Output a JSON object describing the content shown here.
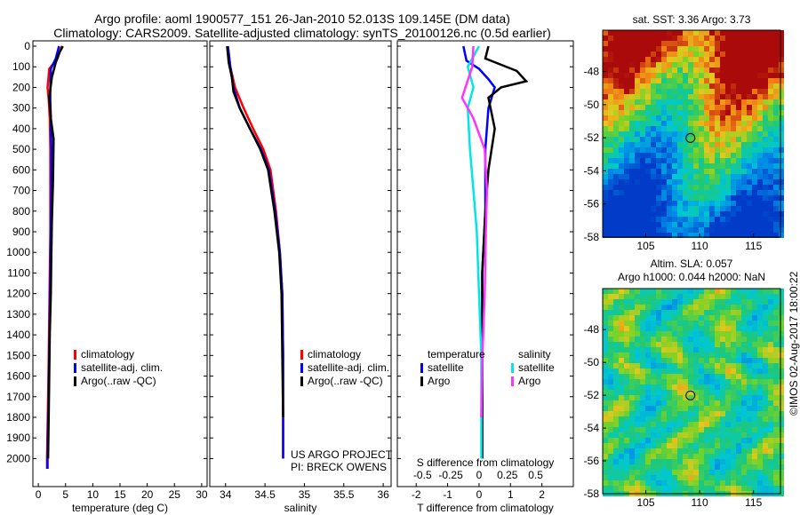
{
  "title_line1": "Argo profile: aoml 1900577_151 26-Jan-2010 52.013S 109.145E (DM data)",
  "title_line2": "Climatology: CARS2009. Satellite-adjusted climatology: synTS_20100126.nc (0.5d earlier)",
  "imos_stamp": "©IMOS 02-Aug-2017 18:00:22",
  "colors": {
    "climatology": "#ff0000",
    "satellite": "#0000ff",
    "argo": "#000000",
    "salinity_satellite": "#00e5e5",
    "salinity_argo": "#ff33ff",
    "background": "#ffffff"
  },
  "chart_data": [
    {
      "type": "line",
      "id": "temperature",
      "xlabel": "temperature (deg C)",
      "ylabel": "",
      "xlim": [
        -1,
        31
      ],
      "ylim": [
        2080,
        0
      ],
      "xticks": [
        0,
        5,
        10,
        15,
        20,
        25,
        30
      ],
      "yticks": [
        0,
        100,
        200,
        300,
        400,
        500,
        600,
        700,
        800,
        900,
        1000,
        1100,
        1200,
        1300,
        1400,
        1500,
        1600,
        1700,
        1800,
        1900,
        2000
      ],
      "legend": [
        "climatology",
        "satellite-adj. clim.",
        "Argo(..raw -QC)"
      ],
      "legend_position": "middle",
      "series": [
        {
          "name": "climatology",
          "color": "#ff0000",
          "x": [
            4.3,
            3.5,
            2.0,
            1.7,
            1.9,
            2.1,
            2.2,
            2.2,
            2.2,
            2.1,
            2.0,
            1.9,
            1.8,
            1.7,
            1.6,
            1.6
          ],
          "depth": [
            0,
            60,
            110,
            200,
            260,
            350,
            500,
            700,
            900,
            1100,
            1300,
            1500,
            1700,
            1850,
            2000,
            2050
          ]
        },
        {
          "name": "satellite-adj. clim.",
          "color": "#0000ff",
          "x": [
            3.8,
            3.2,
            2.3,
            2.2,
            2.2,
            2.3,
            2.4,
            2.4,
            2.3,
            2.2,
            2.1,
            2.0,
            1.9,
            1.8,
            1.7,
            1.7
          ],
          "depth": [
            0,
            60,
            110,
            200,
            260,
            350,
            500,
            700,
            900,
            1100,
            1300,
            1500,
            1700,
            1850,
            2000,
            2050
          ]
        },
        {
          "name": "Argo(..raw -QC)",
          "color": "#000000",
          "x": [
            4.5,
            3.9,
            3.2,
            2.5,
            2.0,
            2.3,
            2.8,
            2.7,
            2.5,
            2.4,
            2.3,
            2.1,
            2.0,
            1.9,
            1.8
          ],
          "depth": [
            0,
            30,
            80,
            150,
            250,
            350,
            450,
            650,
            850,
            1000,
            1200,
            1400,
            1600,
            1800,
            2000
          ]
        }
      ]
    },
    {
      "type": "line",
      "id": "salinity",
      "xlabel": "salinity",
      "ylabel": "",
      "xlim": [
        33.8,
        36.1
      ],
      "ylim": [
        2080,
        0
      ],
      "xticks": [
        34,
        34.5,
        35,
        35.5,
        36
      ],
      "legend": [
        "climatology",
        "satellite-adj. clim.",
        "Argo(..raw -QC)"
      ],
      "legend_position": "middle",
      "annotation": [
        "US ARGO PROJECT",
        "PI: BRECK OWENS"
      ],
      "series": [
        {
          "name": "climatology",
          "color": "#ff0000",
          "x": [
            34.03,
            34.06,
            34.12,
            34.23,
            34.35,
            34.48,
            34.57,
            34.64,
            34.69,
            34.72,
            34.73,
            34.73,
            34.73
          ],
          "depth": [
            0,
            100,
            200,
            300,
            400,
            500,
            600,
            800,
            1000,
            1200,
            1500,
            1800,
            2000
          ]
        },
        {
          "name": "satellite-adj. clim.",
          "color": "#0000ff",
          "x": [
            34.03,
            34.06,
            34.1,
            34.18,
            34.31,
            34.45,
            34.55,
            34.63,
            34.69,
            34.72,
            34.73,
            34.73,
            34.73
          ],
          "depth": [
            0,
            100,
            200,
            300,
            400,
            500,
            600,
            800,
            1000,
            1200,
            1500,
            1800,
            2000
          ]
        },
        {
          "name": "Argo(..raw -QC)",
          "color": "#000000",
          "x": [
            34.02,
            34.04,
            34.08,
            34.1,
            34.18,
            34.31,
            34.44,
            34.54,
            34.62,
            34.68,
            34.71,
            34.72,
            34.73
          ],
          "depth": [
            0,
            80,
            150,
            220,
            300,
            400,
            500,
            600,
            800,
            1000,
            1200,
            1500,
            1800
          ]
        }
      ]
    },
    {
      "type": "line",
      "id": "difference",
      "xlabel": "T difference from climatology",
      "xlabel_top": "S difference from climatology",
      "xlim": [
        -2.6,
        3.0
      ],
      "ylim": [
        2080,
        0
      ],
      "xticks": [
        -2,
        -1,
        0,
        1,
        2
      ],
      "xticks_salinity": [
        -0.5,
        -0.25,
        0,
        0.25,
        0.5
      ],
      "legend_groups": [
        {
          "title": "temperature",
          "items": [
            "satellite",
            "Argo"
          ]
        },
        {
          "title": "salinity",
          "items": [
            "satellite",
            "Argo"
          ]
        }
      ],
      "series": [
        {
          "name": "temperature satellite",
          "color": "#0000ff",
          "x": [
            -0.5,
            -0.4,
            0.0,
            0.3,
            0.5,
            0.3,
            0.2,
            0.2,
            0.1,
            0.1,
            0.1,
            0.1
          ],
          "depth": [
            0,
            70,
            110,
            160,
            200,
            300,
            500,
            800,
            1100,
            1400,
            1700,
            2000
          ]
        },
        {
          "name": "temperature Argo",
          "color": "#000000",
          "x": [
            0.3,
            0.2,
            1.2,
            1.5,
            0.7,
            0.3,
            0.5,
            0.3,
            0.2,
            0.1,
            0.1,
            0.1,
            0.1
          ],
          "depth": [
            0,
            60,
            120,
            170,
            200,
            250,
            400,
            600,
            800,
            1100,
            1400,
            1700,
            2000
          ]
        },
        {
          "name": "salinity satellite",
          "color": "#00e5e5",
          "x": [
            0.0,
            -0.1,
            -0.05,
            -0.1,
            -0.08,
            -0.05,
            -0.02,
            0.0,
            0.02,
            0.02,
            0.02
          ],
          "depth": [
            0,
            100,
            200,
            300,
            500,
            700,
            900,
            1200,
            1500,
            1800,
            2000
          ]
        },
        {
          "name": "salinity Argo",
          "color": "#ff33ff",
          "x": [
            -0.05,
            -0.06,
            -0.15,
            -0.05,
            0.05,
            0.07,
            0.06,
            0.05,
            0.03,
            0.02
          ],
          "depth": [
            0,
            100,
            250,
            350,
            500,
            700,
            900,
            1200,
            1500,
            1800
          ]
        }
      ]
    },
    {
      "type": "heatmap",
      "id": "sst_map",
      "title": "sat. SST: 3.36 Argo: 3.73",
      "xticks": [
        105,
        110,
        115
      ],
      "yticks": [
        -48,
        -50,
        -52,
        -54,
        -56,
        -58
      ],
      "xlim": [
        101,
        117.5
      ],
      "ylim": [
        -58,
        -45.5
      ],
      "marker": {
        "lon": 109.145,
        "lat": -52.013
      }
    },
    {
      "type": "heatmap",
      "id": "sla_map",
      "title_line1": "Altim. SLA: 0.057",
      "title_line2": "Argo h1000: 0.044 h2000: NaN",
      "xticks": [
        105,
        110,
        115
      ],
      "yticks": [
        -48,
        -50,
        -52,
        -54,
        -56,
        -58
      ],
      "xlim": [
        101,
        117.5
      ],
      "ylim": [
        -58,
        -45.5
      ],
      "marker": {
        "lon": 109.145,
        "lat": -52.013
      }
    }
  ]
}
